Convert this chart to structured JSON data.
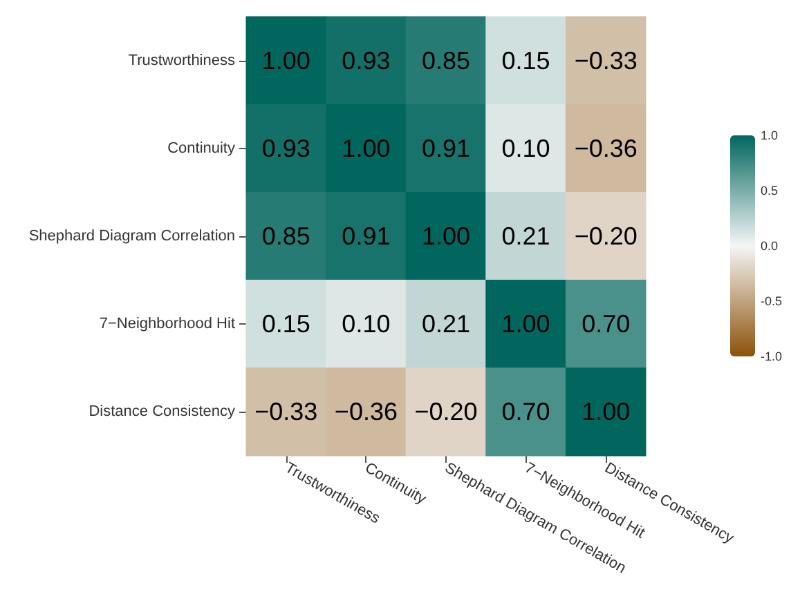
{
  "chart_data": {
    "type": "heatmap",
    "categories": [
      "Trustworthiness",
      "Continuity",
      "Shephard Diagram Correlation",
      "7−Neighborhood Hit",
      "Distance Consistency"
    ],
    "y_categories": [
      "Trustworthiness",
      "Continuity",
      "Shephard Diagram Correlation",
      "7−Neighborhood Hit",
      "Distance Consistency"
    ],
    "cells": [
      [
        1.0,
        0.93,
        0.85,
        0.15,
        -0.33
      ],
      [
        0.93,
        1.0,
        0.91,
        0.1,
        -0.36
      ],
      [
        0.85,
        0.91,
        1.0,
        0.21,
        -0.2
      ],
      [
        0.15,
        0.1,
        0.21,
        1.0,
        0.7
      ],
      [
        -0.33,
        -0.36,
        -0.2,
        0.7,
        1.0
      ]
    ],
    "cell_labels": [
      [
        "1.00",
        "0.93",
        "0.85",
        "0.15",
        "−0.33"
      ],
      [
        "0.93",
        "1.00",
        "0.91",
        "0.10",
        "−0.36"
      ],
      [
        "0.85",
        "0.91",
        "1.00",
        "0.21",
        "−0.20"
      ],
      [
        "0.15",
        "0.10",
        "0.21",
        "1.00",
        "0.70"
      ],
      [
        "−0.33",
        "−0.36",
        "−0.20",
        "0.70",
        "1.00"
      ]
    ],
    "clim": [
      -1,
      1
    ],
    "cticks": [
      {
        "value": 1,
        "label": "1.0"
      },
      {
        "value": 0.5,
        "label": "0.5"
      },
      {
        "value": 0,
        "label": "0.0"
      },
      {
        "value": -0.5,
        "label": "-0.5"
      },
      {
        "value": -1,
        "label": "-1.0"
      }
    ]
  }
}
